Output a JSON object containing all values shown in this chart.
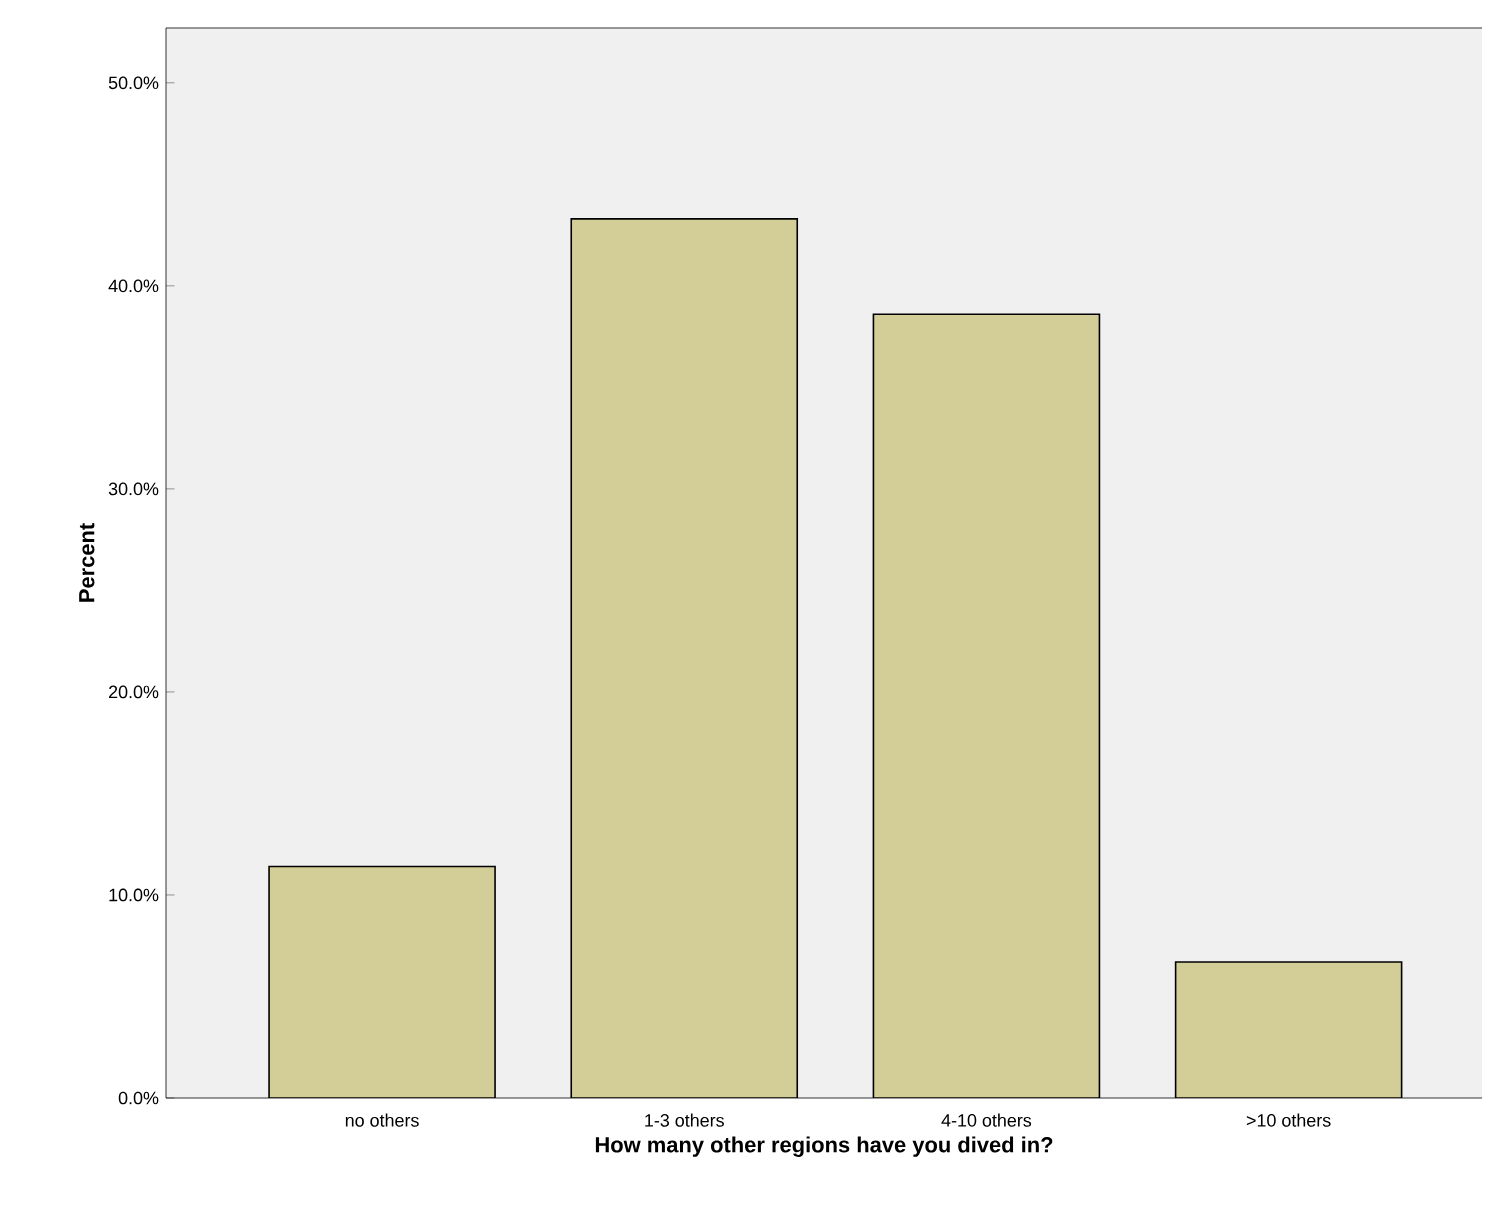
{
  "chart_data": {
    "type": "bar",
    "xlabel": "How many other regions have you dived in?",
    "ylabel": "Percent",
    "categories": [
      "no others",
      "1-3 others",
      "4-10 others",
      ">10 others"
    ],
    "values": [
      11.4,
      43.3,
      38.6,
      6.7
    ],
    "color": "#d3ce97",
    "ylim": [
      0,
      52.7
    ],
    "yticks": [
      {
        "value": 0,
        "label": "0.0%"
      },
      {
        "value": 10,
        "label": "10.0%"
      },
      {
        "value": 20,
        "label": "20.0%"
      },
      {
        "value": 30,
        "label": "30.0%"
      },
      {
        "value": 40,
        "label": "40.0%"
      },
      {
        "value": 50,
        "label": "50.0%"
      }
    ],
    "grid": false
  }
}
